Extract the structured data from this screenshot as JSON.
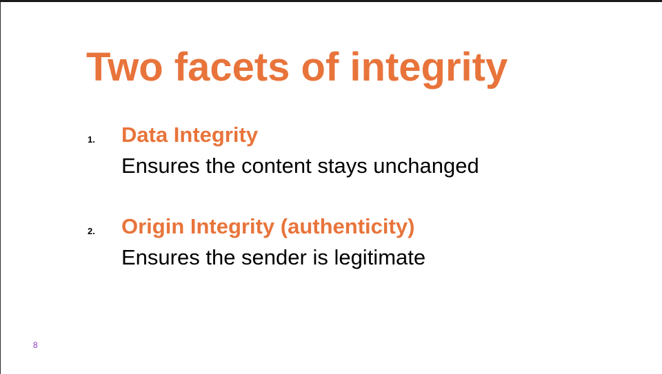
{
  "slide": {
    "title": "Two facets of integrity",
    "items": [
      {
        "number": "1.",
        "heading": "Data Integrity",
        "description": "Ensures the content stays unchanged"
      },
      {
        "number": "2.",
        "heading": "Origin Integrity (authenticity)",
        "description": "Ensures the sender is legitimate"
      }
    ],
    "page_number": "8"
  },
  "colors": {
    "accent": "#e8743b",
    "body_text": "#000000",
    "page_number": "#8a3fbf"
  }
}
